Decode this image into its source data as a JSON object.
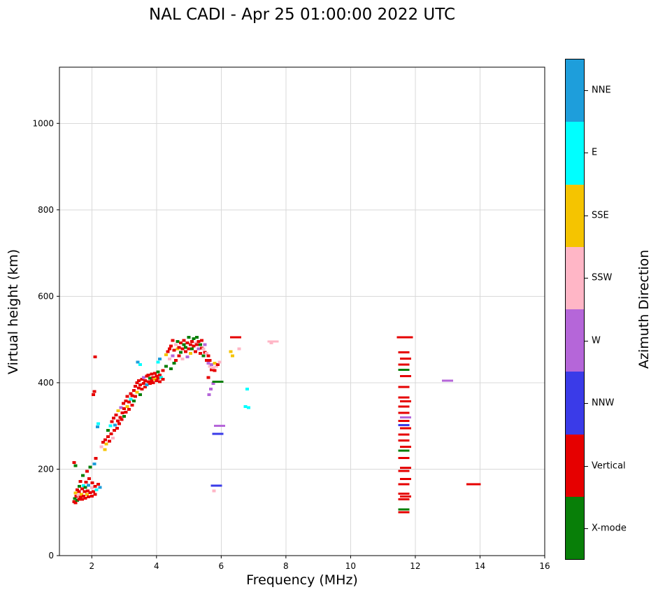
{
  "chart_data": {
    "type": "scatter",
    "title": "NAL CADI - Apr 25 01:00:00 2022 UTC",
    "xlabel": "Frequency (MHz)",
    "ylabel": "Virtual height (km)",
    "legend_title": "Azimuth Direction",
    "legend_position": "right-colorbar",
    "grid": true,
    "xlim": [
      1,
      16
    ],
    "ylim": [
      0,
      1130
    ],
    "xticks": [
      2,
      4,
      6,
      8,
      10,
      12,
      14,
      16
    ],
    "yticks": [
      0,
      200,
      400,
      600,
      800,
      1000
    ],
    "categories": [
      {
        "name": "NNE",
        "color": "#1E9EDB"
      },
      {
        "name": "E",
        "color": "#00FFFF"
      },
      {
        "name": "SSE",
        "color": "#F5C400"
      },
      {
        "name": "SSW",
        "color": "#FFB6C6"
      },
      {
        "name": "W",
        "color": "#B566D9"
      },
      {
        "name": "NNW",
        "color": "#3A3BE8"
      },
      {
        "name": "Vertical",
        "color": "#E60000"
      },
      {
        "name": "X-mode",
        "color": "#087F08"
      }
    ],
    "point_format": "[frequency_MHz, virtual_height_km, category_index, is_dash]",
    "points": [
      [
        1.45,
        125,
        6
      ],
      [
        1.48,
        132,
        7
      ],
      [
        1.5,
        122,
        6
      ],
      [
        1.5,
        145,
        2
      ],
      [
        1.52,
        138,
        6
      ],
      [
        1.55,
        128,
        7
      ],
      [
        1.55,
        152,
        6
      ],
      [
        1.58,
        140,
        3
      ],
      [
        1.6,
        130,
        6
      ],
      [
        1.6,
        148,
        6
      ],
      [
        1.62,
        160,
        7
      ],
      [
        1.65,
        135,
        6
      ],
      [
        1.65,
        172,
        6
      ],
      [
        1.68,
        142,
        2
      ],
      [
        1.7,
        130,
        6
      ],
      [
        1.7,
        155,
        6
      ],
      [
        1.72,
        185,
        7
      ],
      [
        1.75,
        138,
        6
      ],
      [
        1.75,
        162,
        1
      ],
      [
        1.78,
        148,
        6
      ],
      [
        1.8,
        133,
        6
      ],
      [
        1.8,
        158,
        7
      ],
      [
        1.82,
        170,
        6
      ],
      [
        1.85,
        142,
        2
      ],
      [
        1.85,
        195,
        6
      ],
      [
        1.88,
        150,
        6
      ],
      [
        1.9,
        136,
        6
      ],
      [
        1.9,
        163,
        0
      ],
      [
        1.92,
        178,
        6
      ],
      [
        1.95,
        146,
        6
      ],
      [
        1.95,
        205,
        7
      ],
      [
        2.0,
        138,
        6
      ],
      [
        2.0,
        157,
        3
      ],
      [
        2.02,
        168,
        6
      ],
      [
        2.05,
        148,
        6
      ],
      [
        2.08,
        212,
        0
      ],
      [
        2.1,
        142,
        6
      ],
      [
        2.1,
        160,
        6
      ],
      [
        2.12,
        225,
        6
      ],
      [
        2.15,
        152,
        1
      ],
      [
        2.2,
        165,
        6
      ],
      [
        2.25,
        158,
        0
      ],
      [
        1.45,
        215,
        6
      ],
      [
        1.5,
        208,
        7
      ],
      [
        2.1,
        460,
        6
      ],
      [
        2.05,
        372,
        6
      ],
      [
        2.08,
        380,
        6
      ],
      [
        2.2,
        305,
        1
      ],
      [
        2.18,
        298,
        0
      ],
      [
        2.3,
        252,
        3
      ],
      [
        2.35,
        262,
        6
      ],
      [
        2.4,
        245,
        2
      ],
      [
        2.42,
        268,
        6
      ],
      [
        2.45,
        258,
        2
      ],
      [
        2.5,
        275,
        6
      ],
      [
        2.5,
        290,
        7
      ],
      [
        2.55,
        265,
        6
      ],
      [
        2.58,
        300,
        1
      ],
      [
        2.6,
        282,
        6
      ],
      [
        2.62,
        310,
        6
      ],
      [
        2.65,
        272,
        3
      ],
      [
        2.68,
        318,
        6
      ],
      [
        2.7,
        290,
        6
      ],
      [
        2.72,
        302,
        0
      ],
      [
        2.75,
        325,
        6
      ],
      [
        2.78,
        295,
        6
      ],
      [
        2.8,
        312,
        6
      ],
      [
        2.82,
        335,
        2
      ],
      [
        2.85,
        305,
        6
      ],
      [
        2.88,
        320,
        6
      ],
      [
        2.9,
        342,
        4
      ],
      [
        2.92,
        315,
        6
      ],
      [
        2.95,
        330,
        6
      ],
      [
        2.98,
        352,
        6
      ],
      [
        3.0,
        322,
        7
      ],
      [
        3.0,
        340,
        6
      ],
      [
        3.05,
        332,
        6
      ],
      [
        3.05,
        358,
        6
      ],
      [
        3.1,
        345,
        2
      ],
      [
        3.1,
        368,
        6
      ],
      [
        3.15,
        338,
        6
      ],
      [
        3.15,
        355,
        6
      ],
      [
        3.2,
        362,
        1
      ],
      [
        3.2,
        375,
        6
      ],
      [
        3.25,
        348,
        6
      ],
      [
        3.25,
        370,
        6
      ],
      [
        3.3,
        358,
        7
      ],
      [
        3.3,
        382,
        6
      ],
      [
        3.35,
        392,
        6
      ],
      [
        3.35,
        368,
        6
      ],
      [
        3.4,
        400,
        6
      ],
      [
        3.4,
        378,
        2
      ],
      [
        3.45,
        388,
        6
      ],
      [
        3.45,
        405,
        6
      ],
      [
        3.5,
        372,
        7
      ],
      [
        3.5,
        395,
        6
      ],
      [
        3.55,
        408,
        6
      ],
      [
        3.55,
        385,
        6
      ],
      [
        3.6,
        398,
        6
      ],
      [
        3.6,
        412,
        4
      ],
      [
        3.65,
        390,
        6
      ],
      [
        3.65,
        405,
        6
      ],
      [
        3.7,
        415,
        6
      ],
      [
        3.7,
        395,
        0
      ],
      [
        3.75,
        402,
        6
      ],
      [
        3.75,
        418,
        6
      ],
      [
        3.8,
        398,
        6
      ],
      [
        3.8,
        410,
        7
      ],
      [
        3.85,
        405,
        6
      ],
      [
        3.85,
        420,
        6
      ],
      [
        3.9,
        400,
        6
      ],
      [
        3.9,
        412,
        6
      ],
      [
        3.95,
        408,
        2
      ],
      [
        3.95,
        422,
        6
      ],
      [
        4.0,
        405,
        6
      ],
      [
        4.0,
        415,
        6
      ],
      [
        4.05,
        410,
        6
      ],
      [
        4.05,
        425,
        7
      ],
      [
        4.1,
        402,
        6
      ],
      [
        4.1,
        418,
        6
      ],
      [
        4.15,
        412,
        1
      ],
      [
        4.2,
        408,
        6
      ],
      [
        4.2,
        428,
        6
      ],
      [
        3.42,
        448,
        0
      ],
      [
        3.5,
        442,
        1
      ],
      [
        4.05,
        448,
        1
      ],
      [
        4.1,
        455,
        0
      ],
      [
        4.3,
        438,
        7
      ],
      [
        4.3,
        465,
        2
      ],
      [
        4.35,
        472,
        6
      ],
      [
        4.4,
        455,
        3
      ],
      [
        4.4,
        478,
        6
      ],
      [
        4.45,
        432,
        7
      ],
      [
        4.45,
        485,
        6
      ],
      [
        4.5,
        462,
        4
      ],
      [
        4.5,
        498,
        6
      ],
      [
        4.55,
        445,
        7
      ],
      [
        4.55,
        475,
        6
      ],
      [
        4.6,
        488,
        3
      ],
      [
        4.6,
        452,
        6
      ],
      [
        4.65,
        478,
        2
      ],
      [
        4.65,
        495,
        7
      ],
      [
        4.7,
        462,
        6
      ],
      [
        4.7,
        482,
        6
      ],
      [
        4.75,
        470,
        7
      ],
      [
        4.75,
        492,
        6
      ],
      [
        4.8,
        455,
        3
      ],
      [
        4.8,
        478,
        6
      ],
      [
        4.85,
        488,
        7
      ],
      [
        4.85,
        498,
        6
      ],
      [
        4.9,
        472,
        6
      ],
      [
        4.9,
        482,
        7
      ],
      [
        4.95,
        460,
        4
      ],
      [
        4.95,
        492,
        6
      ],
      [
        5.0,
        478,
        6
      ],
      [
        5.0,
        505,
        7
      ],
      [
        5.05,
        468,
        2
      ],
      [
        5.05,
        488,
        6
      ],
      [
        5.1,
        495,
        6
      ],
      [
        5.1,
        478,
        7
      ],
      [
        5.15,
        485,
        6
      ],
      [
        5.15,
        502,
        7
      ],
      [
        5.2,
        492,
        3
      ],
      [
        5.2,
        472,
        6
      ],
      [
        5.25,
        488,
        6
      ],
      [
        5.25,
        505,
        7
      ],
      [
        5.3,
        478,
        4
      ],
      [
        5.3,
        495,
        6
      ],
      [
        5.35,
        468,
        6
      ],
      [
        5.35,
        488,
        7
      ],
      [
        5.4,
        480,
        6
      ],
      [
        5.4,
        498,
        6
      ],
      [
        5.45,
        462,
        7
      ],
      [
        5.45,
        478,
        3
      ],
      [
        5.5,
        470,
        6
      ],
      [
        5.5,
        488,
        4
      ],
      [
        5.55,
        452,
        6
      ],
      [
        5.55,
        468,
        3
      ],
      [
        5.6,
        445,
        4
      ],
      [
        5.6,
        462,
        6
      ],
      [
        5.65,
        438,
        3
      ],
      [
        5.65,
        452,
        6
      ],
      [
        5.7,
        442,
        4
      ],
      [
        5.7,
        430,
        6
      ],
      [
        5.75,
        435,
        3
      ],
      [
        5.8,
        428,
        6
      ],
      [
        5.8,
        445,
        2
      ],
      [
        5.85,
        438,
        3
      ],
      [
        5.9,
        442,
        6
      ],
      [
        5.95,
        448,
        3
      ],
      [
        5.62,
        372,
        4
      ],
      [
        5.68,
        385,
        4
      ],
      [
        5.75,
        398,
        4
      ],
      [
        5.9,
        402,
        7,
        1
      ],
      [
        5.95,
        300,
        4,
        1
      ],
      [
        5.9,
        282,
        5,
        1
      ],
      [
        5.85,
        162,
        5,
        1
      ],
      [
        5.78,
        150,
        3
      ],
      [
        5.6,
        412,
        6
      ],
      [
        6.3,
        472,
        2
      ],
      [
        6.35,
        462,
        2
      ],
      [
        6.45,
        505,
        6,
        1
      ],
      [
        6.55,
        478,
        3
      ],
      [
        6.75,
        345,
        1
      ],
      [
        6.85,
        342,
        1
      ],
      [
        6.8,
        385,
        1
      ],
      [
        7.55,
        492,
        3
      ],
      [
        7.6,
        495,
        3,
        1
      ],
      [
        11.65,
        100,
        6,
        1
      ],
      [
        11.65,
        107,
        7,
        1
      ],
      [
        11.65,
        130,
        6,
        1
      ],
      [
        11.7,
        137,
        6,
        1
      ],
      [
        11.65,
        143,
        6,
        1
      ],
      [
        11.65,
        165,
        6,
        1
      ],
      [
        11.7,
        177,
        6,
        1
      ],
      [
        11.65,
        196,
        6,
        1
      ],
      [
        11.7,
        203,
        6,
        1
      ],
      [
        11.65,
        226,
        6,
        1
      ],
      [
        11.65,
        243,
        7,
        1
      ],
      [
        11.7,
        252,
        6,
        1
      ],
      [
        11.65,
        266,
        6,
        1
      ],
      [
        11.65,
        280,
        6,
        1
      ],
      [
        11.7,
        295,
        6,
        1
      ],
      [
        11.65,
        302,
        5,
        1
      ],
      [
        11.65,
        312,
        6,
        1
      ],
      [
        11.7,
        320,
        4,
        1
      ],
      [
        11.65,
        330,
        6,
        1
      ],
      [
        11.65,
        345,
        6,
        1
      ],
      [
        11.7,
        357,
        6,
        1
      ],
      [
        11.65,
        366,
        6,
        1
      ],
      [
        11.65,
        390,
        6,
        1
      ],
      [
        11.7,
        415,
        6,
        1
      ],
      [
        11.65,
        430,
        7,
        1
      ],
      [
        11.65,
        442,
        6,
        1
      ],
      [
        11.7,
        456,
        6,
        1
      ],
      [
        11.65,
        470,
        6,
        1
      ],
      [
        11.6,
        505,
        6,
        1
      ],
      [
        11.75,
        505,
        6,
        1
      ],
      [
        13.0,
        405,
        4,
        1
      ],
      [
        13.75,
        165,
        6,
        1
      ],
      [
        13.85,
        165,
        6,
        1
      ]
    ]
  }
}
